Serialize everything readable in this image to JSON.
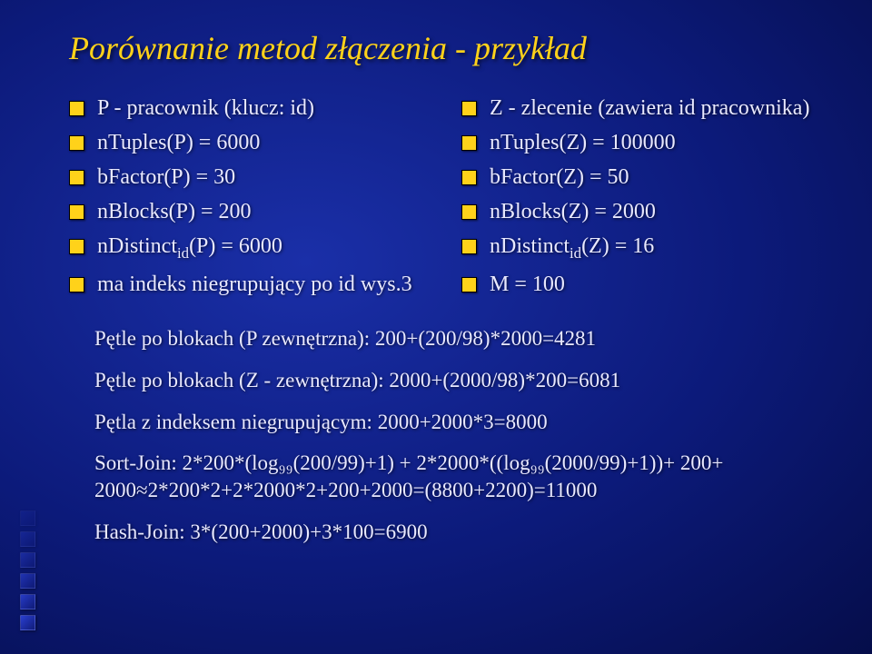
{
  "title": "Porównanie metod złączenia - przykład",
  "left": [
    {
      "text": "P - pracownik (klucz: id)"
    },
    {
      "text": "nTuples(P) = 6000"
    },
    {
      "text": "bFactor(P) = 30"
    },
    {
      "text": "nBlocks(P) = 200"
    },
    {
      "html": "nDistinct<span class='sub'>id</span>(P) = 6000"
    },
    {
      "text": "ma indeks niegrupujący po id wys.3"
    }
  ],
  "right": [
    {
      "text": "Z - zlecenie (zawiera id pracownika)"
    },
    {
      "text": "nTuples(Z) = 100000"
    },
    {
      "text": "bFactor(Z) = 50"
    },
    {
      "text": "nBlocks(Z) = 2000"
    },
    {
      "html": "nDistinct<span class='sub'>id</span>(Z) = 16"
    },
    {
      "text": "M = 100"
    }
  ],
  "lines": [
    "Pętle po blokach (P zewnętrzna): 200+(200/98)*2000=4281",
    "Pętle po blokach (Z - zewnętrzna): 2000+(2000/98)*200=6081",
    "Pętla z indeksem niegrupującym: 2000+2000*3=8000",
    "Sort-Join: 2*200*(log₉₉(200/99)+1) + 2*2000*((log₉₉(2000/99)+1))+ 200+ 2000≈2*200*2+2*2000*2+200+2000=(8800+2200)=11000",
    "Hash-Join: 3*(200+2000)+3*100=6900"
  ]
}
